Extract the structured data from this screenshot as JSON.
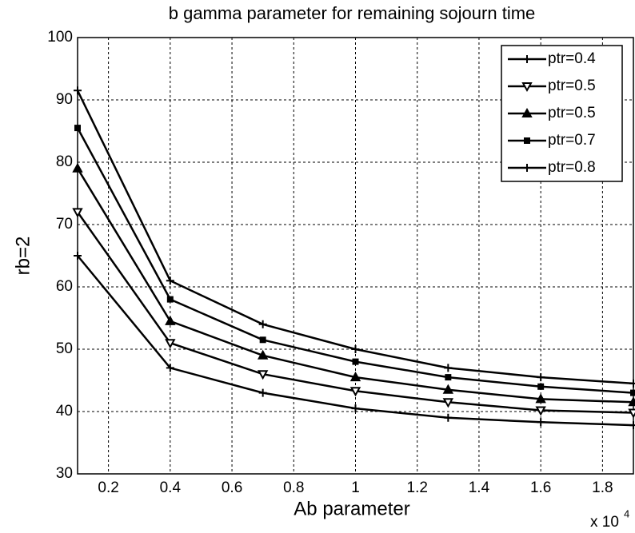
{
  "chart_data": {
    "type": "line",
    "title": "b gamma parameter for remaining sojourn time",
    "x_label": "Ab parameter",
    "y_label": "rb=2",
    "x_multiplier": "x 10",
    "x_multiplier_exponent": "4",
    "x": [
      0.1,
      0.4,
      0.7,
      1.0,
      1.3,
      1.6,
      1.9
    ],
    "xlim": [
      0.1,
      1.9
    ],
    "xticks": [
      0.2,
      0.4,
      0.6,
      0.8,
      1,
      1.2,
      1.4,
      1.6,
      1.8
    ],
    "ylim": [
      30,
      100
    ],
    "yticks": [
      30,
      40,
      50,
      60,
      70,
      80,
      90,
      100
    ],
    "grid": true,
    "legend": "upper right",
    "series": [
      {
        "name": "ptr=0.4",
        "color": "#000000",
        "marker": "plus",
        "values": [
          65,
          47,
          43,
          40.5,
          39,
          38.3,
          37.8
        ]
      },
      {
        "name": "ptr=0.5",
        "color": "#000000",
        "marker": "triangle-down",
        "values": [
          72,
          51,
          46,
          43.3,
          41.5,
          40.2,
          39.8
        ]
      },
      {
        "name": "ptr=0.5",
        "color": "#000000",
        "marker": "triangle-up",
        "values": [
          79,
          54.5,
          49,
          45.5,
          43.5,
          42,
          41.5
        ]
      },
      {
        "name": "ptr=0.7",
        "color": "#000000",
        "marker": "square",
        "values": [
          85.5,
          58,
          51.5,
          48,
          45.5,
          44,
          43
        ]
      },
      {
        "name": "ptr=0.8",
        "color": "#000000",
        "marker": "plus",
        "values": [
          91.5,
          61,
          54,
          50,
          47,
          45.5,
          44.5
        ]
      }
    ]
  }
}
